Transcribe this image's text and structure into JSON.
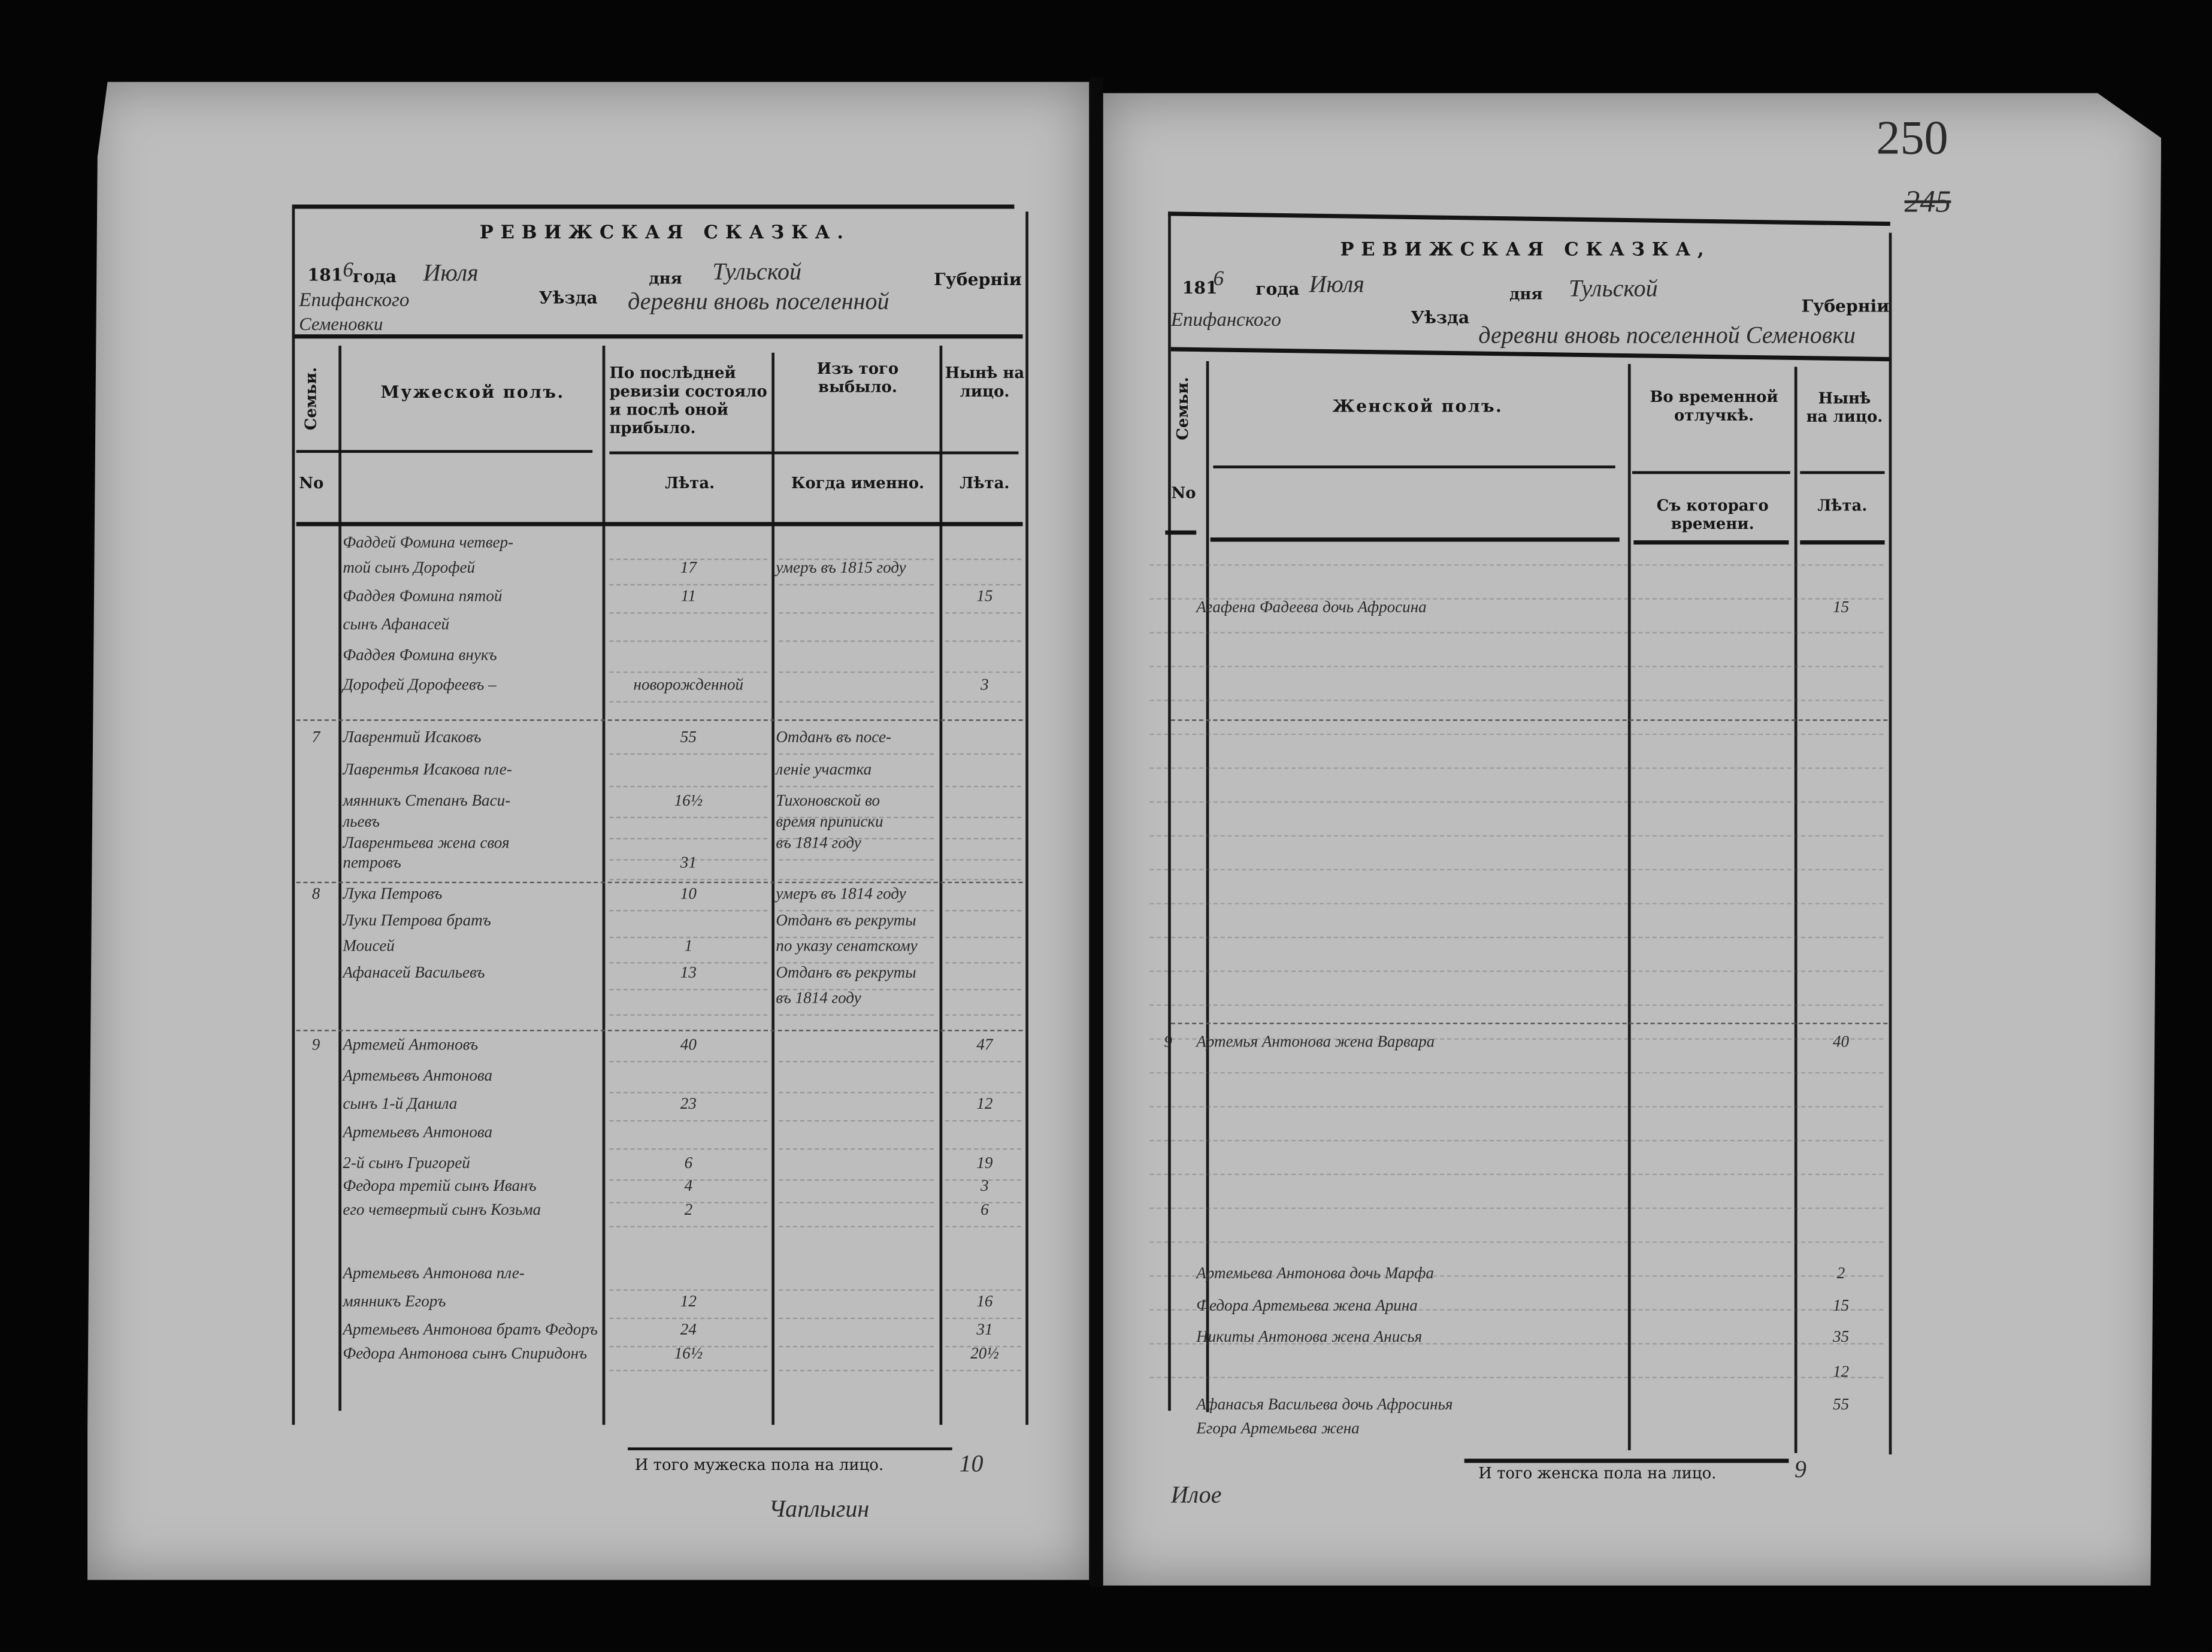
{
  "page_number": "250",
  "page_number_struck": "245",
  "left": {
    "title": "РЕВИЖСКАЯ СКАЗКА.",
    "year_prefix": "181",
    "year_hw": "6",
    "goda": "года",
    "month_hw": "Июля",
    "dnya": "дня",
    "province_hw": "Тульской",
    "gubernii": "Губерніи",
    "uezda": "Уѣзда",
    "district_hw": "Епифанского",
    "village_hw": "деревни вновь поселенной",
    "village2_hw": "Семеновки",
    "col_family": "Семьи.",
    "col_no": "No",
    "col_male": "Мужеской полъ.",
    "col_prev": "По послѣдней ревизіи состояло и послѣ оной прибыло.",
    "col_prev_sub": "Лѣта.",
    "col_left": "Изъ того выбыло.",
    "col_left_sub": "Когда именно.",
    "col_now": "Нынѣ на лицо.",
    "col_now_sub": "Лѣта.",
    "rows": [
      {
        "fam": "",
        "name": "Фаддей Фомина четвер-",
        "prev": "",
        "when": "",
        "now": ""
      },
      {
        "fam": "",
        "name": "той сынъ Дорофей",
        "prev": "17",
        "when": "умеръ въ 1815 году",
        "now": ""
      },
      {
        "fam": "",
        "name": "Фаддея Фомина пятой",
        "prev": "11",
        "when": "",
        "now": "15"
      },
      {
        "fam": "",
        "name": "сынъ Афанасей",
        "prev": "",
        "when": "",
        "now": ""
      },
      {
        "fam": "",
        "name": "Фаддея Фомина внукъ",
        "prev": "",
        "when": "",
        "now": ""
      },
      {
        "fam": "",
        "name": "Дорофей Дорофеевъ –",
        "prev": "новорожденной",
        "when": "",
        "now": "3"
      },
      {
        "fam": "7",
        "name": "Лаврентий Исаковъ",
        "prev": "55",
        "when": "Отданъ въ посе-",
        "now": ""
      },
      {
        "fam": "",
        "name": "Лаврентья Исакова пле-",
        "prev": "",
        "when": "леніе участка",
        "now": ""
      },
      {
        "fam": "",
        "name": "мянникъ Степанъ Васи-",
        "prev": "16½",
        "when": "Тихоновской во",
        "now": ""
      },
      {
        "fam": "",
        "name": "льевъ",
        "prev": "",
        "when": "время приписки",
        "now": ""
      },
      {
        "fam": "",
        "name": "Лаврентьева жена своя",
        "prev": "",
        "when": "въ 1814 году",
        "now": ""
      },
      {
        "fam": "",
        "name": "петровъ",
        "prev": "31",
        "when": "",
        "now": ""
      },
      {
        "fam": "8",
        "name": "Лука Петровъ",
        "prev": "10",
        "when": "умеръ въ 1814 году",
        "now": ""
      },
      {
        "fam": "",
        "name": "Луки Петрова братъ",
        "prev": "",
        "when": "Отданъ въ рекруты",
        "now": ""
      },
      {
        "fam": "",
        "name": "Моисей",
        "prev": "1",
        "when": "по указу сенатскому",
        "now": ""
      },
      {
        "fam": "",
        "name": "Афанасей Васильевъ",
        "prev": "13",
        "when": "Отданъ въ рекруты",
        "now": ""
      },
      {
        "fam": "",
        "name": "",
        "prev": "",
        "when": "въ 1814 году",
        "now": ""
      },
      {
        "fam": "9",
        "name": "Артемей Антоновъ",
        "prev": "40",
        "when": "",
        "now": "47"
      },
      {
        "fam": "",
        "name": "Артемьевъ Антонова",
        "prev": "",
        "when": "",
        "now": ""
      },
      {
        "fam": "",
        "name": "сынъ 1-й Данила",
        "prev": "23",
        "when": "",
        "now": "12"
      },
      {
        "fam": "",
        "name": "Артемьевъ Антонова",
        "prev": "",
        "when": "",
        "now": ""
      },
      {
        "fam": "",
        "name": "2-й сынъ Григорей",
        "prev": "6",
        "when": "",
        "now": "19"
      },
      {
        "fam": "",
        "name": "Федора третій сынъ Иванъ",
        "prev": "4",
        "when": "",
        "now": "3"
      },
      {
        "fam": "",
        "name": "его четвертый сынъ Козьма",
        "prev": "2",
        "when": "",
        "now": "6"
      },
      {
        "fam": "",
        "name": "Артемьевъ Антонова пле-",
        "prev": "",
        "when": "",
        "now": ""
      },
      {
        "fam": "",
        "name": "мянникъ Егоръ",
        "prev": "12",
        "when": "",
        "now": "16"
      },
      {
        "fam": "",
        "name": "Артемьевъ Антонова братъ Федоръ",
        "prev": "24",
        "when": "",
        "now": "31"
      },
      {
        "fam": "",
        "name": "Федора Антонова сынъ Спиридонъ",
        "prev": "16½",
        "when": "",
        "now": "20½"
      }
    ],
    "total_label": "И того мужеска пола на лицо.",
    "total_hw": "10",
    "signature_hw": "Чаплыгин"
  },
  "right": {
    "title": "РЕВИЖСКАЯ СКАЗКА,",
    "year_prefix": "181",
    "year_hw": "6",
    "goda": "года",
    "month_hw": "Июля",
    "dnya": "дня",
    "province_hw": "Тульской",
    "gubernii": "Губерніи",
    "uezda": "Уѣзда",
    "district_hw": "Епифанского",
    "village_hw": "деревни вновь поселенной Семеновки",
    "col_family": "Семьи.",
    "col_no": "No",
    "col_female": "Женской полъ.",
    "col_temp": "Во временной отлучкѣ.",
    "col_temp_sub": "Съ котораго времени.",
    "col_now": "Нынѣ на лицо.",
    "col_now_sub": "Лѣта.",
    "rows": [
      {
        "fam": "",
        "name": "Агафена Фадеева дочь Афросина",
        "now": "15"
      },
      {
        "fam": "9",
        "name": "Артемья Антонова жена Варвара",
        "now": "40"
      },
      {
        "fam": "",
        "name": "Артемьева Антонова дочь Марфа",
        "now": "2"
      },
      {
        "fam": "",
        "name": "Федора Артемьева жена Арина",
        "now": "15"
      },
      {
        "fam": "",
        "name": "Никиты Антонова жена Анисья",
        "now": "35"
      },
      {
        "fam": "",
        "name": "",
        "now": "12"
      },
      {
        "fam": "",
        "name": "Афанасья Васильева дочь Афросинья",
        "now": "55"
      },
      {
        "fam": "",
        "name": "Егора Артемьева жена",
        "now": ""
      }
    ],
    "total_label": "И того женска пола на лицо.",
    "total_hw": "9",
    "signature_hw": "Илое"
  }
}
